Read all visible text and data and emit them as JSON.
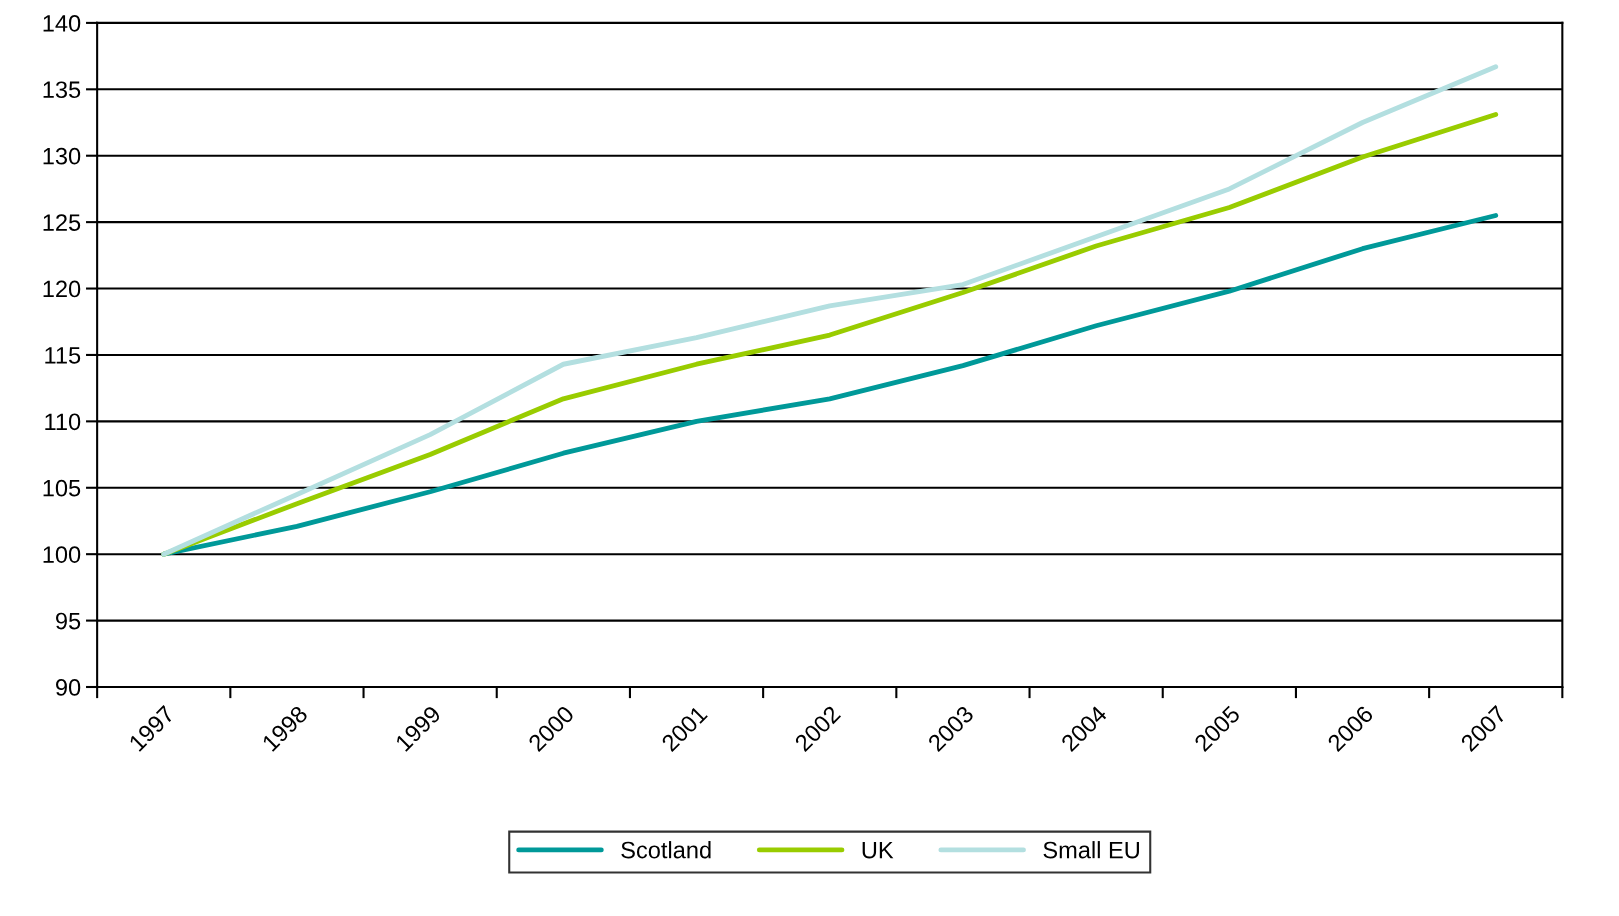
{
  "chart_data": {
    "type": "line",
    "categories": [
      "1997",
      "1998",
      "1999",
      "2000",
      "2001",
      "2002",
      "2003",
      "2004",
      "2005",
      "2006",
      "2007"
    ],
    "series": [
      {
        "name": "Scotland",
        "color": "#009999",
        "values": [
          100,
          102.1,
          104.7,
          107.6,
          110.0,
          111.7,
          114.2,
          117.2,
          119.8,
          123.0,
          125.5
        ]
      },
      {
        "name": "UK",
        "color": "#99cc00",
        "values": [
          100,
          103.8,
          107.5,
          111.7,
          114.3,
          116.5,
          119.7,
          123.2,
          126.1,
          129.9,
          133.1
        ]
      },
      {
        "name": "Small EU",
        "color": "#b3dfe0",
        "values": [
          100,
          104.5,
          109.0,
          114.3,
          116.3,
          118.7,
          120.3,
          123.9,
          127.5,
          132.5,
          136.7
        ]
      }
    ],
    "ylim": [
      90,
      140
    ],
    "yticks": [
      90,
      95,
      100,
      105,
      110,
      115,
      120,
      125,
      130,
      135,
      140
    ],
    "grid": "y",
    "legend": "bottom",
    "marker": "none",
    "line_style": "solid"
  }
}
